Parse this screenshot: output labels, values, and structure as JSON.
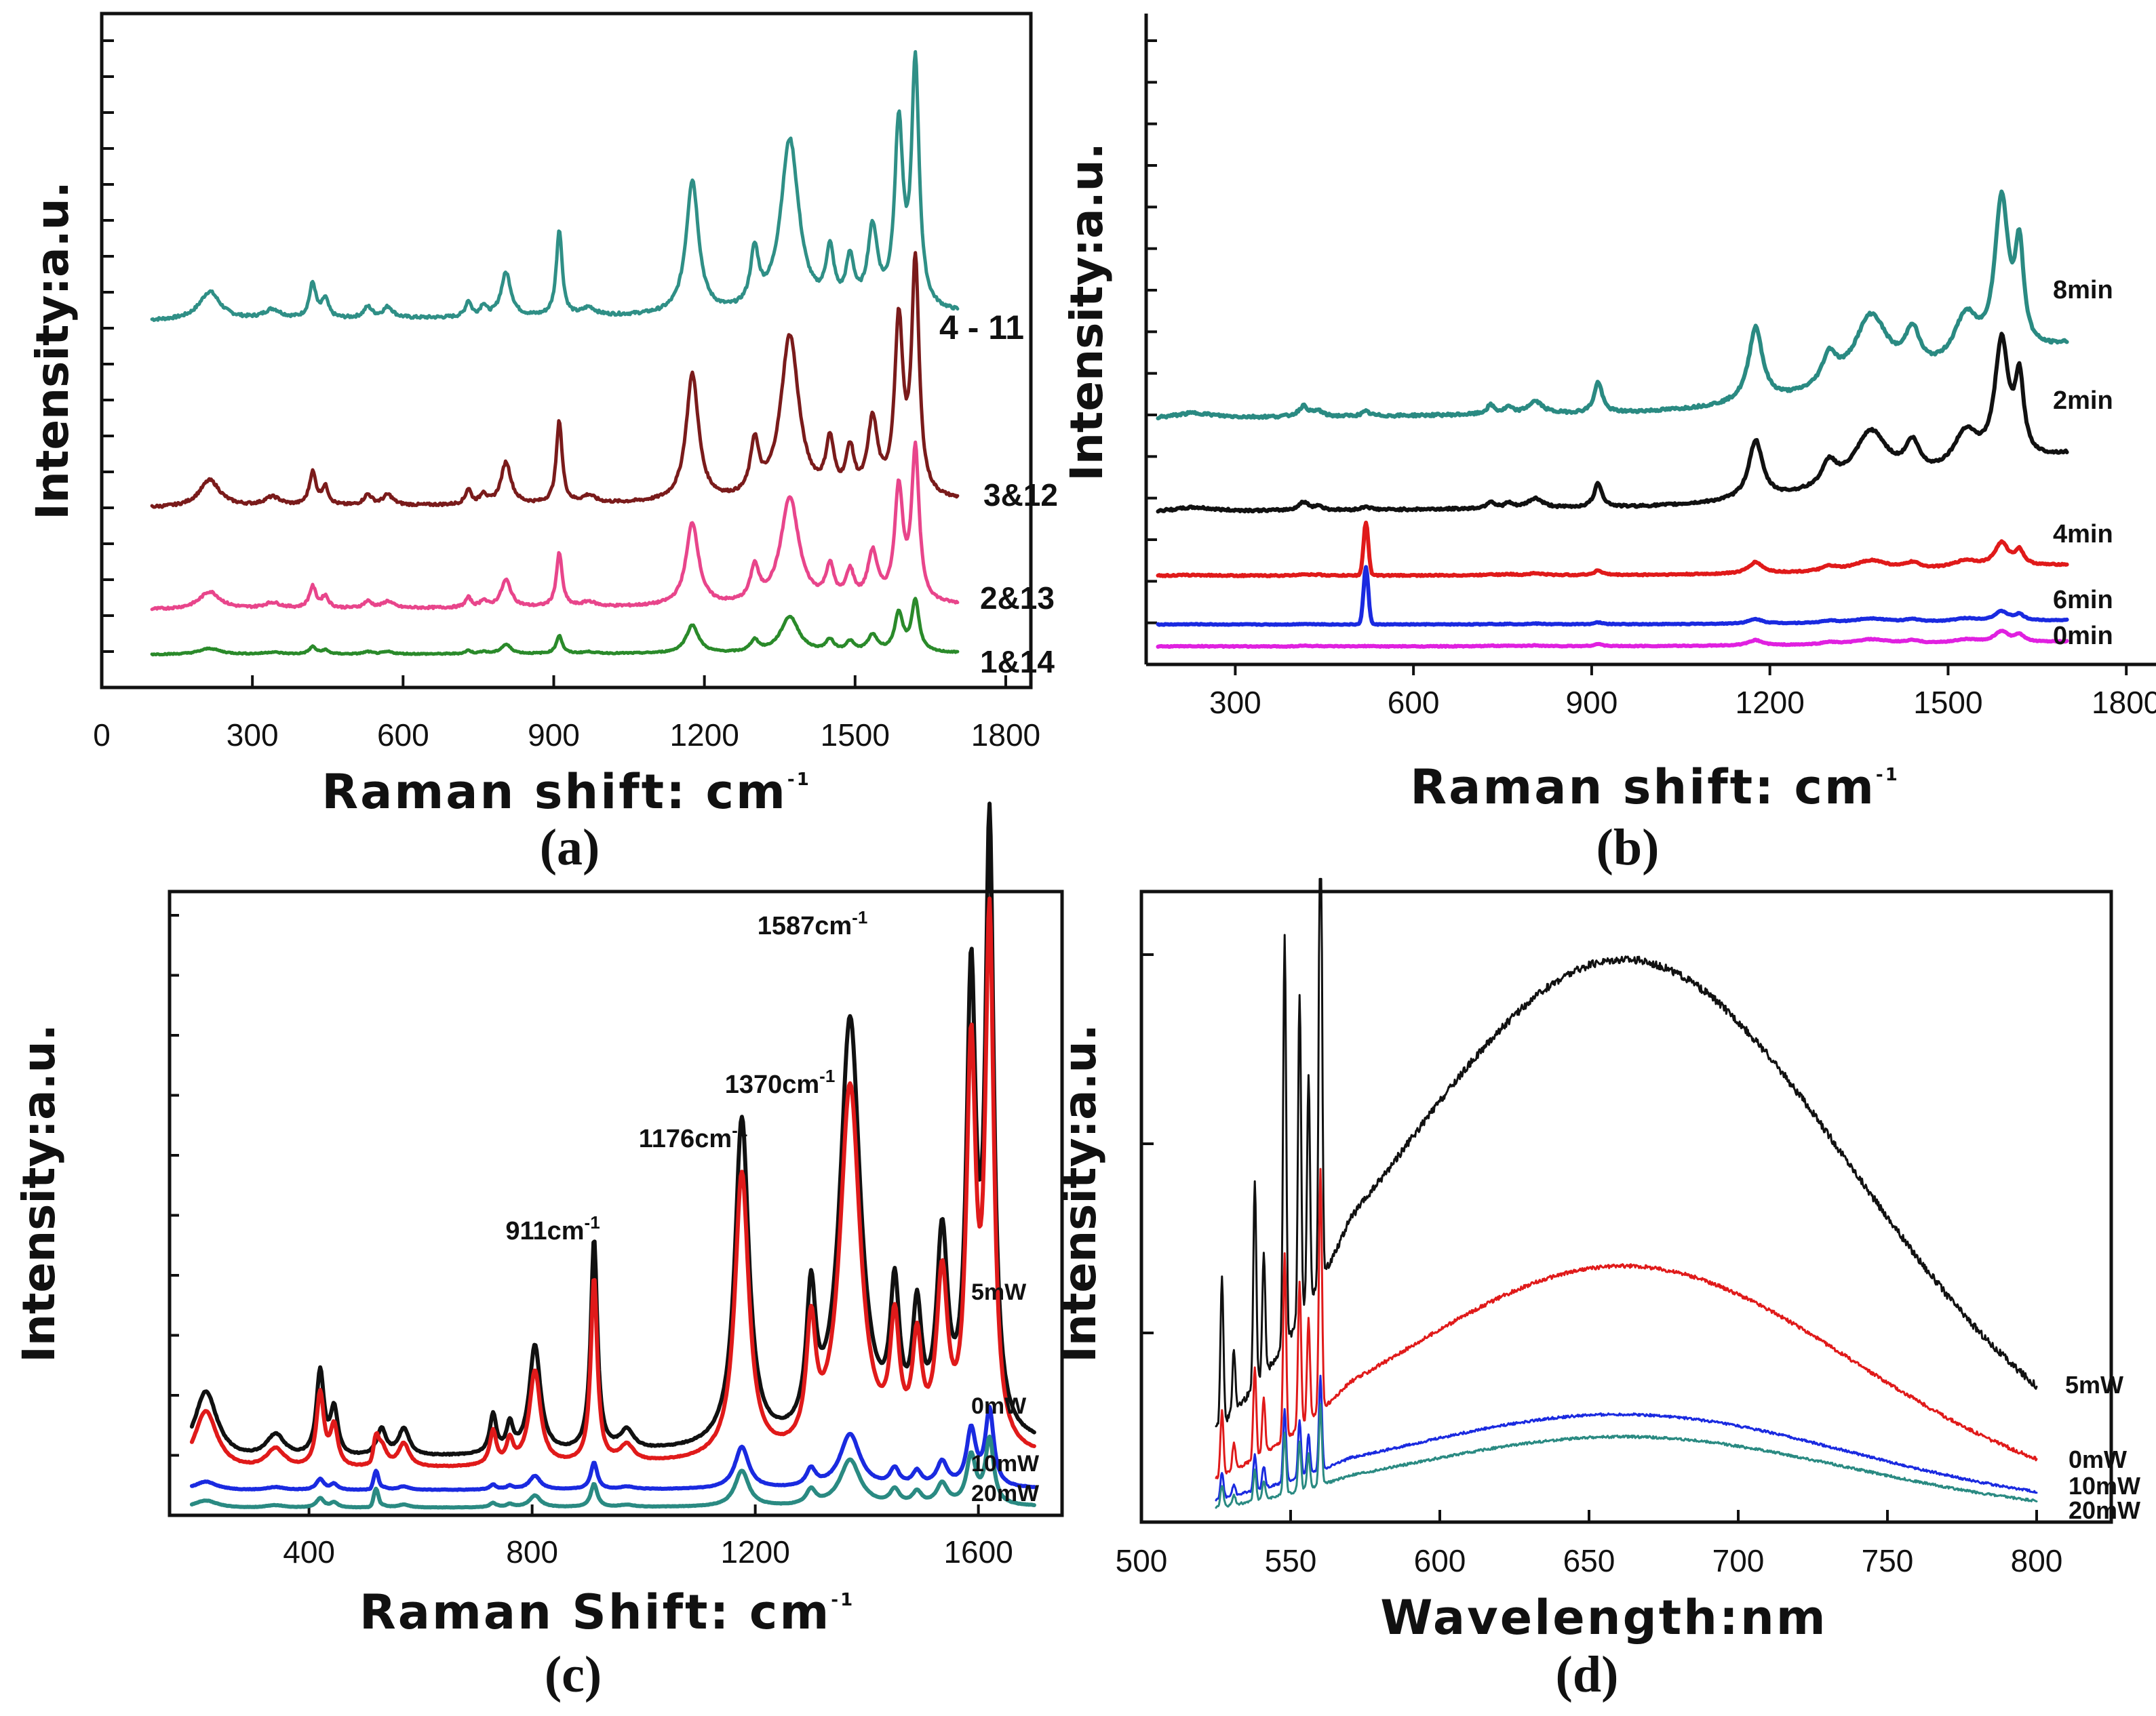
{
  "chart_data": [
    {
      "panel": "(a)",
      "type": "line",
      "xlabel": "Raman shift: cm",
      "xlabel_sup": "-1",
      "ylabel": "Intensity:a.u.",
      "xlim": [
        0,
        1850
      ],
      "xticks": [
        "0",
        "300",
        "600",
        "900",
        "1200",
        "1500",
        "1800"
      ],
      "ylim": [
        0,
        4.5
      ],
      "series": [
        {
          "name": "4 - 11",
          "color": "#2f8f86",
          "offset": 2.45,
          "scale": 1.05,
          "noise": 0.02
        },
        {
          "name": "3&12",
          "color": "#7a1b1b",
          "offset": 1.2,
          "scale": 1.0,
          "noise": 0.018
        },
        {
          "name": "2&13",
          "color": "#e8458b",
          "offset": 0.52,
          "scale": 0.65,
          "noise": 0.015
        },
        {
          "name": "1&14",
          "color": "#2a8a2a",
          "offset": 0.22,
          "scale": 0.22,
          "noise": 0.008
        }
      ]
    },
    {
      "panel": "(b)",
      "type": "line",
      "xlabel": "Raman shift: cm",
      "xlabel_sup": "-1",
      "ylabel": "Intensity:a.u.",
      "xlim": [
        150,
        1850
      ],
      "xticks": [
        "300",
        "600",
        "900",
        "1200",
        "1500",
        "1800"
      ],
      "ylim": [
        0,
        7.4
      ],
      "series": [
        {
          "name": "8min",
          "color": "#2a8a82",
          "offset": 2.75,
          "scale": 1.0,
          "noise": 0.03
        },
        {
          "name": "2min",
          "color": "#111111",
          "offset": 1.7,
          "scale": 0.78,
          "noise": 0.025
        },
        {
          "name": "4min",
          "color": "#e01a1a",
          "offset": 1.0,
          "scale": 0.15,
          "noise": 0.015
        },
        {
          "name": "6min",
          "color": "#1a2ae0",
          "offset": 0.45,
          "scale": 0.06,
          "noise": 0.01
        },
        {
          "name": "0min",
          "color": "#e020e0",
          "offset": 0.2,
          "scale": 0.07,
          "noise": 0.01
        }
      ]
    },
    {
      "panel": "(c)",
      "type": "line",
      "xlabel": "Raman Shift: cm",
      "xlabel_sup": "-1",
      "ylabel": "Intensity:a.u.",
      "xlim": [
        150,
        1750
      ],
      "xticks": [
        "400",
        "800",
        "1200",
        "1600"
      ],
      "ylim": [
        0,
        8.9
      ],
      "annotations": [
        {
          "label": "911cm",
          "sup": "-1",
          "x": 911
        },
        {
          "label": "1176cm",
          "sup": "-1",
          "x": 1176
        },
        {
          "label": "1370cm",
          "sup": "-1",
          "x": 1370
        },
        {
          "label": "1587cm",
          "sup": "-1",
          "x": 1587
        }
      ],
      "series": [
        {
          "name": "5mW",
          "color": "#111111",
          "offset": 0.75,
          "scale": 1.0,
          "noise": 0.015
        },
        {
          "name": "0mW",
          "color": "#e01a1a",
          "offset": 0.6,
          "scale": 0.82,
          "noise": 0.012
        },
        {
          "name": "10mW",
          "color": "#1a2ae0",
          "offset": 0.35,
          "scale": 0.12,
          "noise": 0.008
        },
        {
          "name": "20mW",
          "color": "#2a8a82",
          "offset": 0.1,
          "scale": 0.1,
          "noise": 0.006
        }
      ]
    },
    {
      "panel": "(d)",
      "type": "line",
      "xlabel": "Wavelength:nm",
      "ylabel": "Intensity:a.u.",
      "xlim": [
        500,
        825
      ],
      "xticks": [
        "500",
        "550",
        "600",
        "650",
        "700",
        "750",
        "800"
      ],
      "ylim": [
        0,
        1.0
      ],
      "series": [
        {
          "name": "5mW",
          "color": "#111111",
          "base": 0.12,
          "amp": 0.8,
          "noise": 0.012
        },
        {
          "name": "0mW",
          "color": "#e01a1a",
          "base": 0.06,
          "amp": 0.36,
          "noise": 0.006
        },
        {
          "name": "10mW",
          "color": "#1a2ae0",
          "base": 0.04,
          "amp": 0.14,
          "noise": 0.004
        },
        {
          "name": "20mW",
          "color": "#2a8a82",
          "base": 0.02,
          "amp": 0.12,
          "noise": 0.004
        }
      ]
    }
  ]
}
